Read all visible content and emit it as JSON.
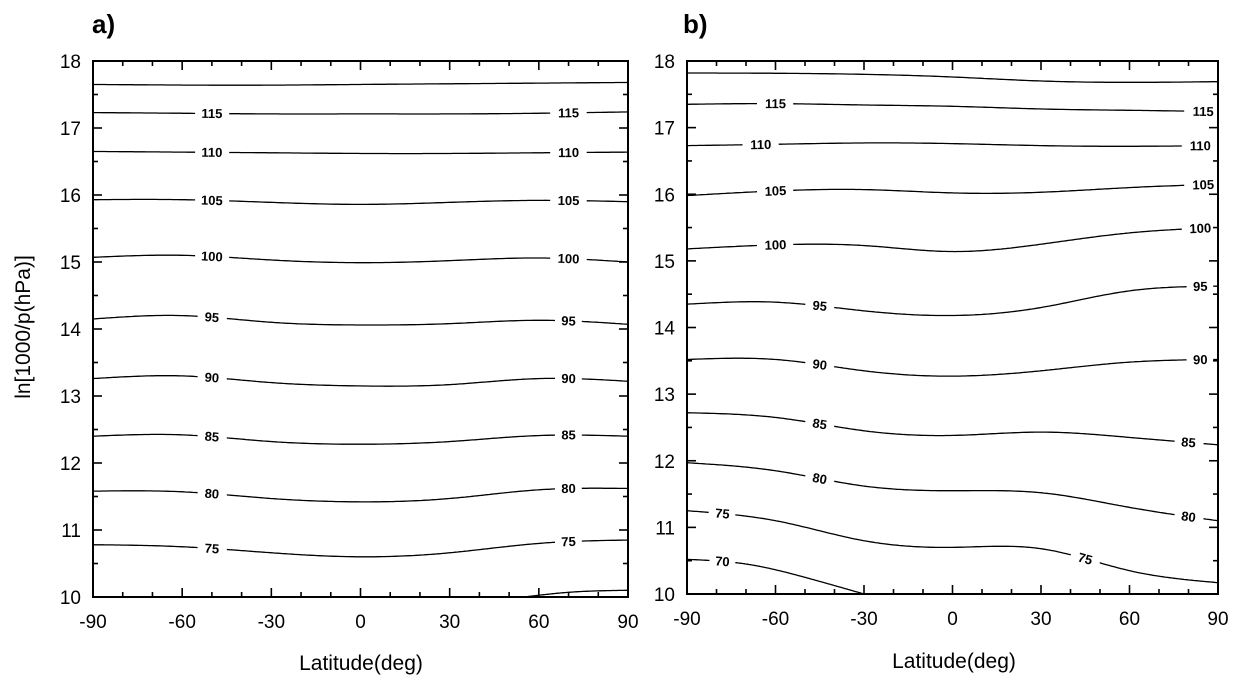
{
  "chart_data": [
    {
      "panel_label": "a)",
      "type": "contour",
      "xlabel": "Latitude(deg)",
      "ylabel": "ln[1000/p(hPa)]",
      "xlim": [
        -90,
        90
      ],
      "ylim": [
        10,
        18
      ],
      "xticks": [
        -90,
        -60,
        -30,
        0,
        30,
        60,
        90
      ],
      "yticks": [
        10,
        11,
        12,
        13,
        14,
        15,
        16,
        17,
        18
      ],
      "contours": [
        {
          "level": "",
          "x": [
            -90,
            -30,
            0,
            30,
            90
          ],
          "y": [
            17.65,
            17.64,
            17.65,
            17.66,
            17.68
          ]
        },
        {
          "level": "115",
          "labels_at": [
            -50,
            70
          ],
          "x": [
            -90,
            -60,
            -30,
            0,
            30,
            60,
            90
          ],
          "y": [
            17.23,
            17.22,
            17.21,
            17.21,
            17.21,
            17.22,
            17.24
          ]
        },
        {
          "level": "110",
          "labels_at": [
            -50,
            70
          ],
          "x": [
            -90,
            -60,
            -30,
            0,
            30,
            60,
            90
          ],
          "y": [
            16.65,
            16.64,
            16.63,
            16.62,
            16.62,
            16.63,
            16.64
          ]
        },
        {
          "level": "105",
          "labels_at": [
            -50,
            70
          ],
          "x": [
            -90,
            -60,
            -30,
            0,
            30,
            60,
            90
          ],
          "y": [
            15.93,
            15.93,
            15.89,
            15.86,
            15.89,
            15.92,
            15.9
          ]
        },
        {
          "level": "100",
          "labels_at": [
            -50,
            70
          ],
          "x": [
            -90,
            -60,
            -30,
            0,
            30,
            60,
            90
          ],
          "y": [
            15.07,
            15.1,
            15.03,
            14.99,
            15.02,
            15.06,
            15.0
          ]
        },
        {
          "level": "95",
          "labels_at": [
            -50,
            70
          ],
          "x": [
            -90,
            -60,
            -30,
            0,
            30,
            60,
            90
          ],
          "y": [
            14.15,
            14.2,
            14.1,
            14.06,
            14.08,
            14.13,
            14.07
          ]
        },
        {
          "level": "90",
          "labels_at": [
            -50,
            70
          ],
          "x": [
            -90,
            -60,
            -30,
            0,
            30,
            60,
            90
          ],
          "y": [
            13.26,
            13.3,
            13.2,
            13.15,
            13.17,
            13.26,
            13.22
          ]
        },
        {
          "level": "85",
          "labels_at": [
            -50,
            70
          ],
          "x": [
            -90,
            -60,
            -30,
            0,
            30,
            60,
            90
          ],
          "y": [
            12.4,
            12.42,
            12.32,
            12.28,
            12.32,
            12.41,
            12.4
          ]
        },
        {
          "level": "80",
          "labels_at": [
            -50,
            70
          ],
          "x": [
            -90,
            -60,
            -30,
            0,
            30,
            60,
            90
          ],
          "y": [
            11.58,
            11.57,
            11.47,
            11.42,
            11.47,
            11.6,
            11.62
          ]
        },
        {
          "level": "75",
          "labels_at": [
            -50,
            70
          ],
          "x": [
            -90,
            -60,
            -30,
            0,
            30,
            60,
            90
          ],
          "y": [
            10.78,
            10.75,
            10.66,
            10.6,
            10.66,
            10.8,
            10.85
          ]
        },
        {
          "level": "",
          "x": [
            55,
            70,
            90
          ],
          "y": [
            10.0,
            10.07,
            10.1
          ]
        }
      ]
    },
    {
      "panel_label": "b)",
      "type": "contour",
      "xlabel": "Latitude(deg)",
      "ylabel": "",
      "xlim": [
        -90,
        90
      ],
      "ylim": [
        10,
        18
      ],
      "xticks": [
        -90,
        -60,
        -30,
        0,
        30,
        60,
        90
      ],
      "yticks": [
        10,
        11,
        12,
        13,
        14,
        15,
        16,
        17,
        18
      ],
      "contours": [
        {
          "level": "",
          "x": [
            -90,
            -30,
            0,
            30,
            90
          ],
          "y": [
            17.82,
            17.8,
            17.76,
            17.7,
            17.69
          ]
        },
        {
          "level": "115",
          "labels_at": [
            -60,
            85
          ],
          "x": [
            -90,
            -60,
            -30,
            0,
            30,
            60,
            90
          ],
          "y": [
            17.35,
            17.36,
            17.34,
            17.32,
            17.28,
            17.26,
            17.24
          ]
        },
        {
          "level": "110",
          "labels_at": [
            -65,
            84
          ],
          "x": [
            -90,
            -60,
            -30,
            0,
            30,
            60,
            90
          ],
          "y": [
            16.73,
            16.75,
            16.77,
            16.76,
            16.73,
            16.72,
            16.73
          ]
        },
        {
          "level": "105",
          "labels_at": [
            -60,
            85
          ],
          "x": [
            -90,
            -60,
            -30,
            0,
            30,
            60,
            90
          ],
          "y": [
            15.98,
            16.05,
            16.07,
            16.02,
            16.03,
            16.1,
            16.15
          ]
        },
        {
          "level": "100",
          "labels_at": [
            -60,
            84
          ],
          "x": [
            -90,
            -60,
            -30,
            0,
            30,
            60,
            90
          ],
          "y": [
            15.18,
            15.24,
            15.23,
            15.14,
            15.25,
            15.42,
            15.5
          ]
        },
        {
          "level": "95",
          "labels_at": [
            -45,
            84
          ],
          "x": [
            -90,
            -60,
            -30,
            0,
            30,
            60,
            90
          ],
          "y": [
            14.35,
            14.38,
            14.25,
            14.18,
            14.3,
            14.55,
            14.62
          ]
        },
        {
          "level": "90",
          "labels_at": [
            -45,
            84
          ],
          "x": [
            -90,
            -60,
            -30,
            0,
            30,
            60,
            90
          ],
          "y": [
            13.52,
            13.52,
            13.35,
            13.27,
            13.35,
            13.48,
            13.52
          ]
        },
        {
          "level": "85",
          "labels_at": [
            -45,
            80
          ],
          "x": [
            -90,
            -60,
            -30,
            0,
            30,
            60,
            90
          ],
          "y": [
            12.72,
            12.65,
            12.45,
            12.38,
            12.43,
            12.35,
            12.24
          ]
        },
        {
          "level": "80",
          "labels_at": [
            -45,
            80
          ],
          "x": [
            -90,
            -60,
            -30,
            0,
            30,
            60,
            90
          ],
          "y": [
            11.97,
            11.85,
            11.62,
            11.55,
            11.52,
            11.3,
            11.1
          ]
        },
        {
          "level": "75",
          "labels_at": [
            -78,
            45
          ],
          "x": [
            -90,
            -60,
            -30,
            0,
            30,
            60,
            90
          ],
          "y": [
            11.25,
            11.1,
            10.8,
            10.7,
            10.68,
            10.35,
            10.17
          ]
        },
        {
          "level": "70",
          "labels_at": [
            -78
          ],
          "x": [
            -90,
            -70,
            -50,
            -30
          ],
          "y": [
            10.52,
            10.45,
            10.25,
            10.0
          ]
        }
      ]
    }
  ]
}
